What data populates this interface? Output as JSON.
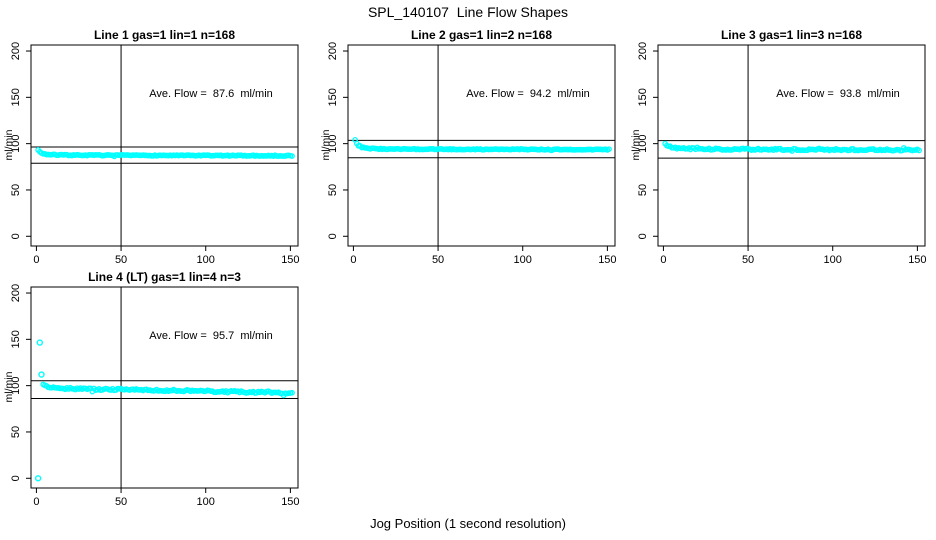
{
  "page": {
    "title": "SPL_140107  Line Flow Shapes",
    "xlabel": "Jog Position (1 second resolution)",
    "background_color": "#FFFFFF",
    "axis_color": "#000000",
    "point_color": "#00FFFF"
  },
  "chart_data": [
    {
      "type": "scatter",
      "title": "Line 1 gas=1 lin=1 n=168",
      "annotation": "Ave. Flow =  87.6  ml/min",
      "ave_flow_ml_min": 87.6,
      "n": 168,
      "ylabel": "ml/min",
      "x_ticks": [
        0,
        50,
        100,
        150
      ],
      "y_ticks": [
        0,
        50,
        100,
        150,
        200
      ],
      "xlim": [
        -3.2,
        154.5
      ],
      "ylim": [
        -10.5,
        206.5
      ],
      "grid": false,
      "vline_x": 50,
      "hlines": [
        96.4,
        78.8
      ],
      "marker": "open-circle",
      "marker_color": "#00FFFF",
      "series": {
        "x_start": 1,
        "x_end": 151,
        "x_step": 1,
        "profile": [
          [
            1,
            93.2
          ],
          [
            2,
            91.2
          ],
          [
            3,
            89.9
          ],
          [
            5,
            88.7
          ],
          [
            8,
            88.1
          ],
          [
            15,
            87.7
          ],
          [
            40,
            87.4
          ],
          [
            90,
            87.2
          ],
          [
            151,
            86.9
          ]
        ],
        "jitter": 0.5,
        "outliers": []
      }
    },
    {
      "type": "scatter",
      "title": "Line 2 gas=1 lin=2 n=168",
      "annotation": "Ave. Flow =  94.2  ml/min",
      "ave_flow_ml_min": 94.2,
      "n": 168,
      "ylabel": "ml/min",
      "x_ticks": [
        0,
        50,
        100,
        150
      ],
      "y_ticks": [
        0,
        50,
        100,
        150,
        200
      ],
      "xlim": [
        -3.2,
        154.5
      ],
      "ylim": [
        -10.5,
        206.5
      ],
      "grid": false,
      "vline_x": 50,
      "hlines": [
        103.6,
        84.8
      ],
      "marker": "open-circle",
      "marker_color": "#00FFFF",
      "series": {
        "x_start": 1,
        "x_end": 151,
        "x_step": 1,
        "profile": [
          [
            1,
            104.0
          ],
          [
            2,
            100.3
          ],
          [
            3,
            98.0
          ],
          [
            5,
            96.1
          ],
          [
            8,
            94.9
          ],
          [
            15,
            94.3
          ],
          [
            60,
            93.9
          ],
          [
            151,
            93.6
          ]
        ],
        "jitter": 0.45,
        "outliers": []
      }
    },
    {
      "type": "scatter",
      "title": "Line 3 gas=1 lin=3 n=168",
      "annotation": "Ave. Flow =  93.8  ml/min",
      "ave_flow_ml_min": 93.8,
      "n": 168,
      "ylabel": "ml/min",
      "x_ticks": [
        0,
        50,
        100,
        150
      ],
      "y_ticks": [
        0,
        50,
        100,
        150,
        200
      ],
      "xlim": [
        -3.2,
        154.5
      ],
      "ylim": [
        -10.5,
        206.5
      ],
      "grid": false,
      "vline_x": 50,
      "hlines": [
        103.2,
        84.4
      ],
      "marker": "open-circle",
      "marker_color": "#00FFFF",
      "series": {
        "x_start": 1,
        "x_end": 151,
        "x_step": 1,
        "profile": [
          [
            1,
            100.2
          ],
          [
            2,
            98.2
          ],
          [
            4,
            96.4
          ],
          [
            7,
            95.3
          ],
          [
            12,
            94.6
          ],
          [
            30,
            94.0
          ],
          [
            90,
            93.6
          ],
          [
            151,
            93.2
          ]
        ],
        "jitter": 0.9,
        "outliers": []
      }
    },
    {
      "type": "scatter",
      "title": "Line 4 (LT) gas=1 lin=4 n=3",
      "annotation": "Ave. Flow =  95.7  ml/min",
      "ave_flow_ml_min": 95.7,
      "n": 3,
      "ylabel": "ml/min",
      "x_ticks": [
        0,
        50,
        100,
        150
      ],
      "y_ticks": [
        0,
        50,
        100,
        150,
        200
      ],
      "xlim": [
        -3.2,
        154.5
      ],
      "ylim": [
        -10.5,
        206.5
      ],
      "grid": false,
      "vline_x": 50,
      "hlines": [
        105.3,
        86.1
      ],
      "marker": "open-circle",
      "marker_color": "#00FFFF",
      "series": {
        "x_start": 4,
        "x_end": 151,
        "x_step": 1,
        "profile": [
          [
            4,
            101.3
          ],
          [
            7,
            99.2
          ],
          [
            12,
            97.6
          ],
          [
            20,
            96.9
          ],
          [
            35,
            96.2
          ],
          [
            50,
            95.7
          ],
          [
            65,
            95.3
          ],
          [
            80,
            94.7
          ],
          [
            95,
            94.2
          ],
          [
            110,
            93.6
          ],
          [
            125,
            93.0
          ],
          [
            140,
            92.4
          ],
          [
            151,
            91.9
          ]
        ],
        "jitter": 1.05,
        "outliers": [
          [
            1,
            0
          ],
          [
            2,
            146.5
          ],
          [
            3,
            112.0
          ]
        ]
      }
    }
  ]
}
